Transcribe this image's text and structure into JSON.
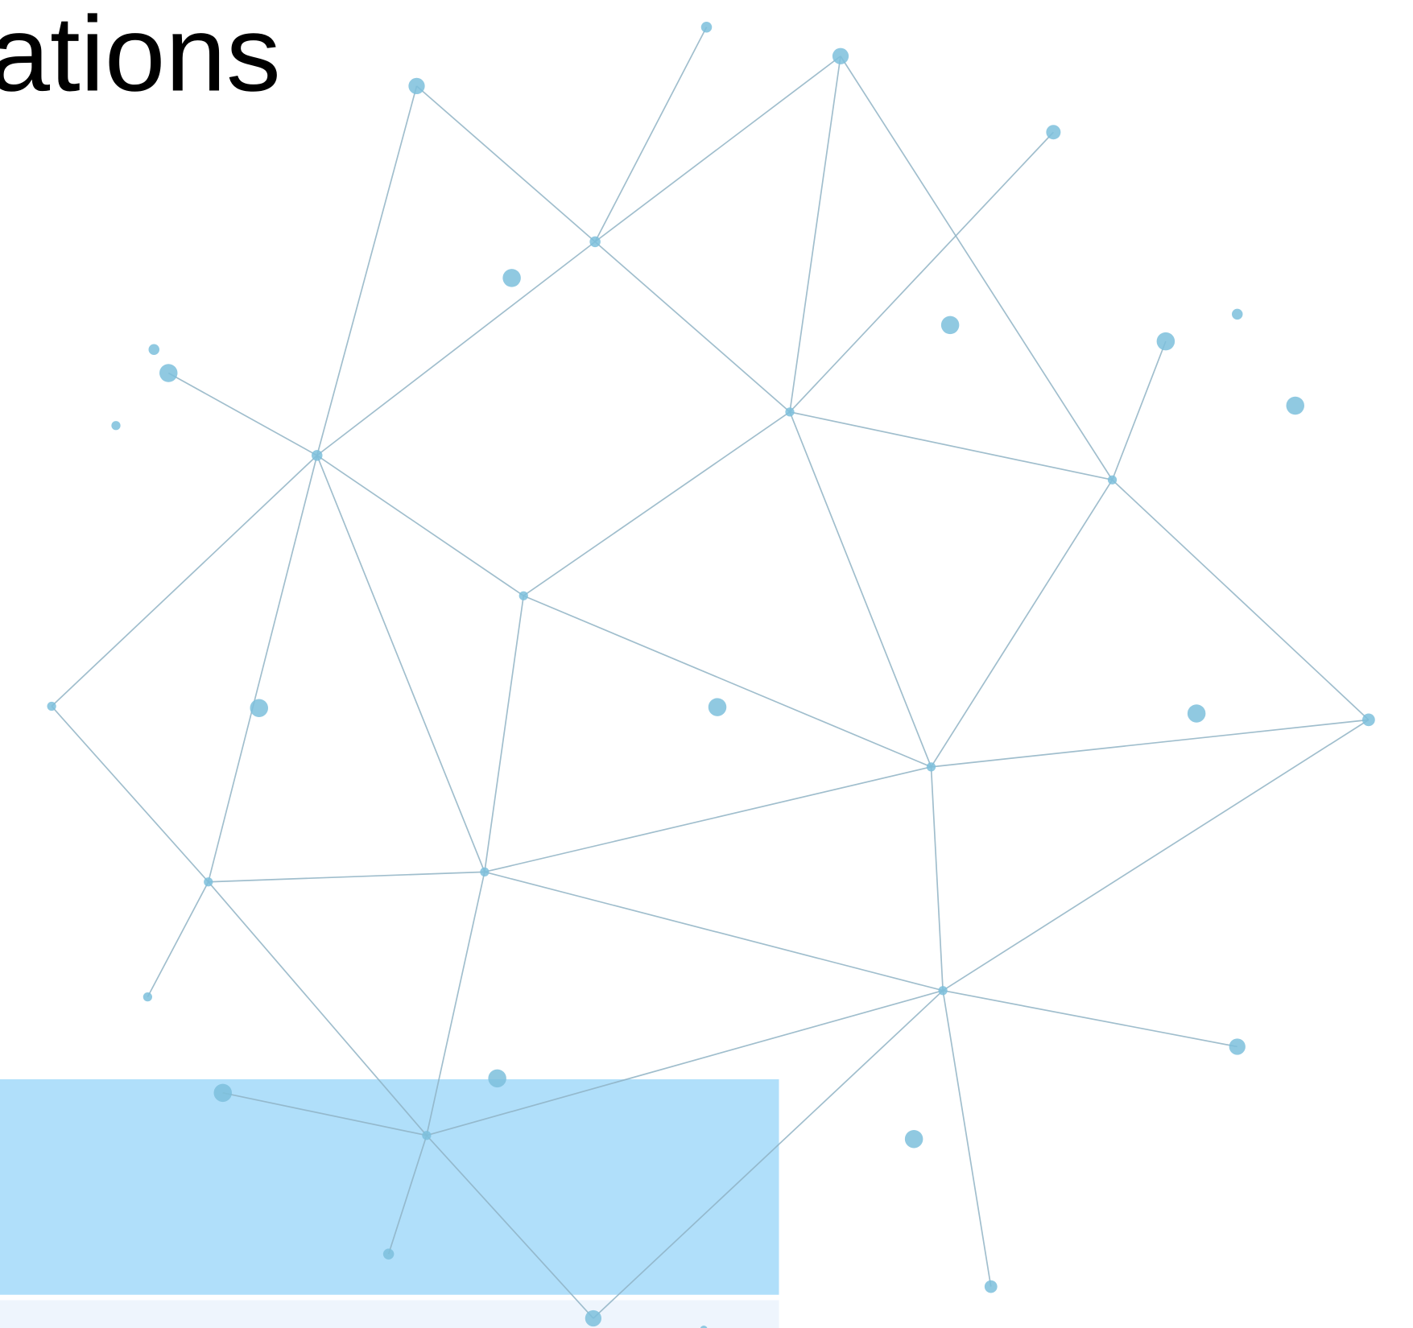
{
  "title": "ations"
}
